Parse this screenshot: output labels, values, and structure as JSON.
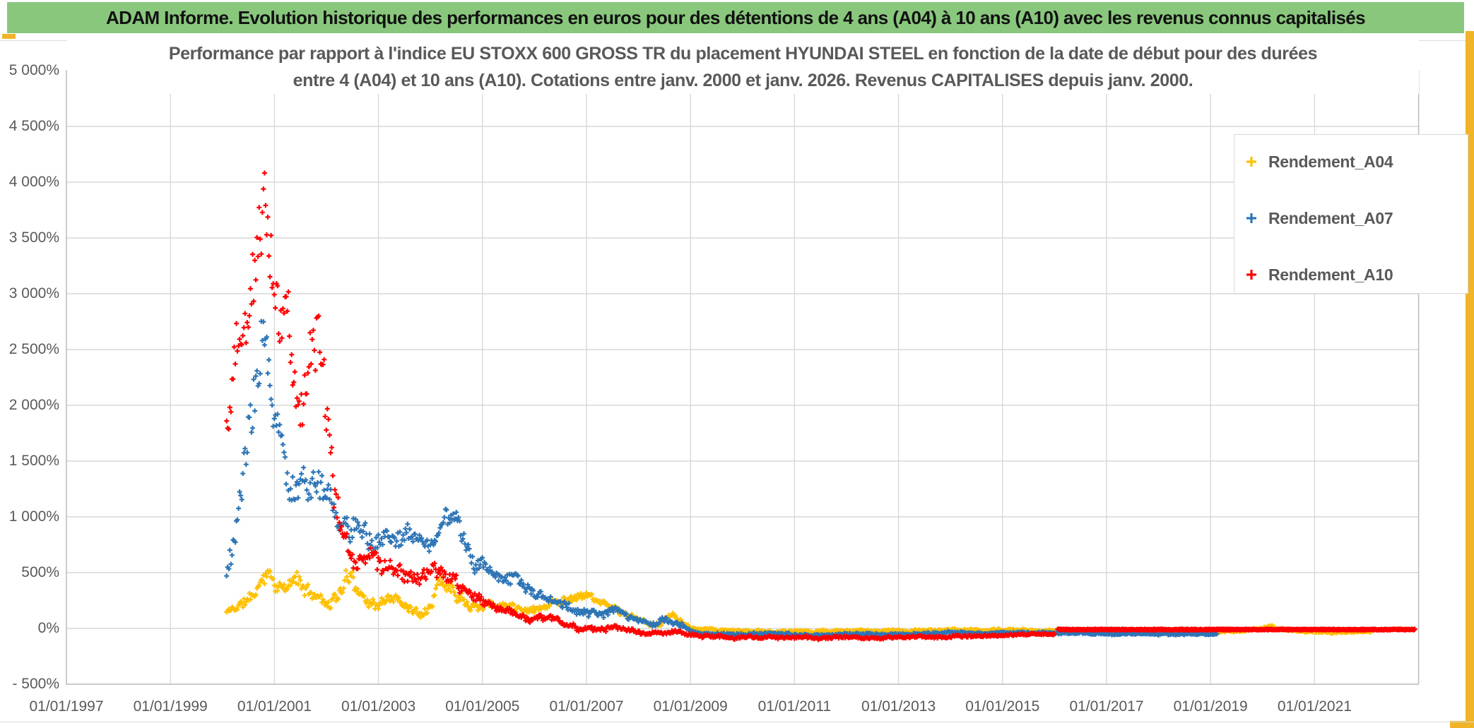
{
  "app": {
    "header_title": "ADAM Informe. Evolution historique des performances en euros pour des détentions de 4 ans (A04) à 10 ans (A10) avec les revenus connus capitalisés",
    "header_bg": "#89C77D",
    "accent_amber": "#F0B428"
  },
  "chart_data": {
    "type": "scatter",
    "title_line1": "Performance par rapport à l'indice EU STOXX 600 GROSS TR  du placement HYUNDAI STEEL en fonction de la date de début pour des durées",
    "title_line2": "entre 4 (A04) et 10 ans (A10). Cotations entre janv. 2000 et janv. 2026. Revenus CAPITALISES depuis janv. 2000.",
    "x_axis": {
      "labels": [
        "01/01/1997",
        "01/01/1999",
        "01/01/2001",
        "01/01/2003",
        "01/01/2005",
        "01/01/2007",
        "01/01/2009",
        "01/01/2011",
        "01/01/2013",
        "01/01/2015",
        "01/01/2017",
        "01/01/2019",
        "01/01/2021"
      ],
      "start_year": 1997,
      "end_year": 2023,
      "tick_step_years": 2
    },
    "y_axis": {
      "labels": [
        "5 000%",
        "4 500%",
        "4 000%",
        "3 500%",
        "3 000%",
        "2 500%",
        "2 000%",
        "1 500%",
        "1 000%",
        "500%",
        "0%",
        "- 500%"
      ],
      "min": -500,
      "max": 5000,
      "step": 500,
      "unit": "%"
    },
    "grid": true,
    "legend_position": "right",
    "colors": {
      "gridline": "#D9D9D9",
      "plot_border": "#BFBFBF",
      "axis_text": "#595959"
    },
    "series": [
      {
        "name": "Rendement_A04",
        "color": "#FFC000",
        "marker": "+",
        "seed": 11,
        "start": 2000.08,
        "end": 2022.1,
        "envelope": [
          [
            2000.08,
            90,
            200
          ],
          [
            2000.25,
            130,
            240
          ],
          [
            2000.4,
            170,
            290
          ],
          [
            2000.55,
            210,
            340
          ],
          [
            2000.7,
            280,
            450
          ],
          [
            2000.85,
            420,
            650
          ],
          [
            2000.95,
            380,
            560
          ],
          [
            2001.1,
            300,
            450
          ],
          [
            2001.25,
            280,
            420
          ],
          [
            2001.4,
            330,
            580
          ],
          [
            2001.55,
            280,
            430
          ],
          [
            2001.7,
            250,
            380
          ],
          [
            2001.85,
            230,
            360
          ],
          [
            2002.0,
            160,
            300
          ],
          [
            2002.2,
            200,
            380
          ],
          [
            2002.35,
            300,
            500
          ],
          [
            2002.5,
            380,
            600
          ],
          [
            2002.65,
            250,
            430
          ],
          [
            2002.8,
            180,
            330
          ],
          [
            2003.0,
            150,
            260
          ],
          [
            2003.15,
            190,
            310
          ],
          [
            2003.3,
            220,
            350
          ],
          [
            2003.5,
            170,
            290
          ],
          [
            2003.65,
            130,
            240
          ],
          [
            2003.8,
            90,
            180
          ],
          [
            2004.0,
            180,
            330
          ],
          [
            2004.15,
            300,
            560
          ],
          [
            2004.3,
            320,
            540
          ],
          [
            2004.5,
            260,
            430
          ],
          [
            2004.7,
            200,
            340
          ],
          [
            2004.9,
            160,
            280
          ],
          [
            2005.1,
            170,
            290
          ],
          [
            2005.3,
            150,
            260
          ],
          [
            2005.5,
            160,
            270
          ],
          [
            2005.7,
            150,
            250
          ],
          [
            2005.9,
            130,
            220
          ],
          [
            2006.1,
            150,
            250
          ],
          [
            2006.3,
            180,
            280
          ],
          [
            2006.5,
            200,
            300
          ],
          [
            2006.7,
            230,
            330
          ],
          [
            2006.9,
            260,
            360
          ],
          [
            2007.05,
            250,
            345
          ],
          [
            2007.2,
            200,
            300
          ],
          [
            2007.4,
            150,
            250
          ],
          [
            2007.6,
            120,
            200
          ],
          [
            2007.8,
            80,
            150
          ],
          [
            2008.0,
            40,
            100
          ],
          [
            2008.2,
            10,
            70
          ],
          [
            2008.45,
            20,
            80
          ],
          [
            2008.65,
            100,
            185
          ],
          [
            2008.8,
            30,
            100
          ],
          [
            2009.0,
            -25,
            8
          ],
          [
            2009.5,
            -35,
            -5
          ],
          [
            2010.0,
            -38,
            -10
          ],
          [
            2010.5,
            -42,
            -14
          ],
          [
            2011.0,
            -40,
            -12
          ],
          [
            2011.6,
            -38,
            -10
          ],
          [
            2012.3,
            -40,
            -14
          ],
          [
            2013.0,
            -36,
            -10
          ],
          [
            2013.6,
            -32,
            -6
          ],
          [
            2014.1,
            -28,
            -2
          ],
          [
            2014.6,
            -30,
            -6
          ],
          [
            2015.1,
            -26,
            -2
          ],
          [
            2015.7,
            -30,
            -8
          ],
          [
            2016.4,
            -34,
            -12
          ],
          [
            2017.2,
            -38,
            -16
          ],
          [
            2018.0,
            -42,
            -20
          ],
          [
            2018.8,
            -44,
            -22
          ],
          [
            2019.5,
            -40,
            -16
          ],
          [
            2019.9,
            -22,
            6
          ],
          [
            2020.15,
            -4,
            34
          ],
          [
            2020.45,
            -24,
            2
          ],
          [
            2020.9,
            -40,
            -16
          ],
          [
            2021.4,
            -46,
            -22
          ],
          [
            2021.9,
            -48,
            -24
          ],
          [
            2022.1,
            -46,
            -26
          ]
        ]
      },
      {
        "name": "Rendement_A07",
        "color": "#2E75B6",
        "marker": "+",
        "seed": 23,
        "start": 2000.08,
        "end": 2019.13,
        "envelope": [
          [
            2000.08,
            420,
            760
          ],
          [
            2000.2,
            500,
            900
          ],
          [
            2000.35,
            800,
            1400
          ],
          [
            2000.5,
            1100,
            1900
          ],
          [
            2000.65,
            1600,
            2500
          ],
          [
            2000.78,
            2300,
            3050
          ],
          [
            2000.9,
            2000,
            2750
          ],
          [
            2001.0,
            1500,
            2100
          ],
          [
            2001.1,
            1400,
            2000
          ],
          [
            2001.25,
            1100,
            1550
          ],
          [
            2001.4,
            1150,
            1650
          ],
          [
            2001.55,
            1200,
            1700
          ],
          [
            2001.7,
            1000,
            1400
          ],
          [
            2001.85,
            1050,
            1500
          ],
          [
            2002.0,
            1100,
            1500
          ],
          [
            2002.15,
            850,
            1250
          ],
          [
            2002.3,
            700,
            1050
          ],
          [
            2002.5,
            650,
            1000
          ],
          [
            2002.7,
            700,
            1050
          ],
          [
            2002.9,
            650,
            950
          ],
          [
            2003.1,
            700,
            1000
          ],
          [
            2003.3,
            750,
            1020
          ],
          [
            2003.6,
            700,
            980
          ],
          [
            2003.9,
            620,
            900
          ],
          [
            2004.1,
            700,
            950
          ],
          [
            2004.3,
            800,
            1040
          ],
          [
            2004.45,
            850,
            1070
          ],
          [
            2004.6,
            700,
            920
          ],
          [
            2004.75,
            580,
            780
          ],
          [
            2004.95,
            470,
            650
          ],
          [
            2005.15,
            420,
            580
          ],
          [
            2005.4,
            380,
            540
          ],
          [
            2005.65,
            400,
            560
          ],
          [
            2005.9,
            280,
            430
          ],
          [
            2006.15,
            230,
            350
          ],
          [
            2006.45,
            180,
            290
          ],
          [
            2006.75,
            130,
            230
          ],
          [
            2007.0,
            100,
            190
          ],
          [
            2007.3,
            90,
            170
          ],
          [
            2007.6,
            110,
            190
          ],
          [
            2007.95,
            50,
            130
          ],
          [
            2008.3,
            10,
            80
          ],
          [
            2008.6,
            20,
            90
          ],
          [
            2008.9,
            -30,
            30
          ],
          [
            2009.2,
            -60,
            -25
          ],
          [
            2009.7,
            -65,
            -32
          ],
          [
            2010.2,
            -68,
            -36
          ],
          [
            2010.8,
            -70,
            -40
          ],
          [
            2011.5,
            -72,
            -42
          ],
          [
            2012.2,
            -68,
            -40
          ],
          [
            2013.0,
            -62,
            -36
          ],
          [
            2013.6,
            -55,
            -30
          ],
          [
            2014.2,
            -45,
            -22
          ],
          [
            2014.8,
            -50,
            -28
          ],
          [
            2015.4,
            -52,
            -30
          ],
          [
            2016.0,
            -50,
            -30
          ],
          [
            2016.6,
            -52,
            -32
          ],
          [
            2017.2,
            -55,
            -35
          ],
          [
            2018.0,
            -58,
            -38
          ],
          [
            2018.6,
            -60,
            -40
          ],
          [
            2019.13,
            -62,
            -42
          ]
        ]
      },
      {
        "name": "Rendement_A10",
        "color": "#FF0000",
        "marker": "+",
        "seed": 37,
        "start": 2000.08,
        "end": 2016.0,
        "envelope": [
          [
            2000.08,
            1400,
            2000
          ],
          [
            2000.2,
            1800,
            2800
          ],
          [
            2000.35,
            2100,
            3250
          ],
          [
            2000.5,
            2300,
            3350
          ],
          [
            2000.65,
            2800,
            3900
          ],
          [
            2000.8,
            3400,
            4360
          ],
          [
            2000.95,
            3000,
            3800
          ],
          [
            2001.1,
            2500,
            3250
          ],
          [
            2001.25,
            2700,
            3450
          ],
          [
            2001.4,
            2100,
            3000
          ],
          [
            2001.55,
            1700,
            2500
          ],
          [
            2001.7,
            2000,
            3000
          ],
          [
            2001.85,
            2200,
            3100
          ],
          [
            2002.0,
            1300,
            2200
          ],
          [
            2002.15,
            950,
            1500
          ],
          [
            2002.3,
            600,
            950
          ],
          [
            2002.45,
            500,
            750
          ],
          [
            2002.6,
            520,
            760
          ],
          [
            2002.75,
            550,
            820
          ],
          [
            2002.9,
            560,
            840
          ],
          [
            2003.05,
            480,
            720
          ],
          [
            2003.2,
            430,
            680
          ],
          [
            2003.4,
            420,
            640
          ],
          [
            2003.6,
            330,
            520
          ],
          [
            2003.8,
            260,
            440
          ],
          [
            2004.05,
            430,
            650
          ],
          [
            2004.25,
            330,
            520
          ],
          [
            2004.5,
            330,
            500
          ],
          [
            2004.7,
            220,
            380
          ],
          [
            2004.9,
            180,
            300
          ],
          [
            2005.1,
            160,
            270
          ],
          [
            2005.35,
            110,
            210
          ],
          [
            2005.6,
            80,
            170
          ],
          [
            2005.85,
            50,
            130
          ],
          [
            2006.1,
            60,
            140
          ],
          [
            2006.4,
            40,
            110
          ],
          [
            2006.7,
            0,
            70
          ],
          [
            2007.0,
            -30,
            30
          ],
          [
            2007.3,
            -40,
            15
          ],
          [
            2007.6,
            -10,
            45
          ],
          [
            2007.9,
            -45,
            10
          ],
          [
            2008.2,
            -60,
            -15
          ],
          [
            2008.5,
            -65,
            -25
          ],
          [
            2008.7,
            -45,
            0
          ],
          [
            2009.0,
            -75,
            -40
          ],
          [
            2009.5,
            -90,
            -55
          ],
          [
            2010.0,
            -95,
            -60
          ],
          [
            2010.5,
            -100,
            -65
          ],
          [
            2011.0,
            -100,
            -65
          ],
          [
            2011.5,
            -105,
            -70
          ],
          [
            2012.0,
            -100,
            -68
          ],
          [
            2012.5,
            -98,
            -66
          ],
          [
            2013.0,
            -95,
            -65
          ],
          [
            2013.5,
            -92,
            -62
          ],
          [
            2014.0,
            -88,
            -58
          ],
          [
            2014.5,
            -82,
            -54
          ],
          [
            2015.0,
            -75,
            -48
          ],
          [
            2015.5,
            -68,
            -44
          ],
          [
            2016.0,
            -62,
            -40
          ]
        ],
        "flat_segment": {
          "start": 2016.06,
          "end": 2022.93,
          "value": -10,
          "note": "dense flat line at ~0%"
        }
      }
    ]
  }
}
